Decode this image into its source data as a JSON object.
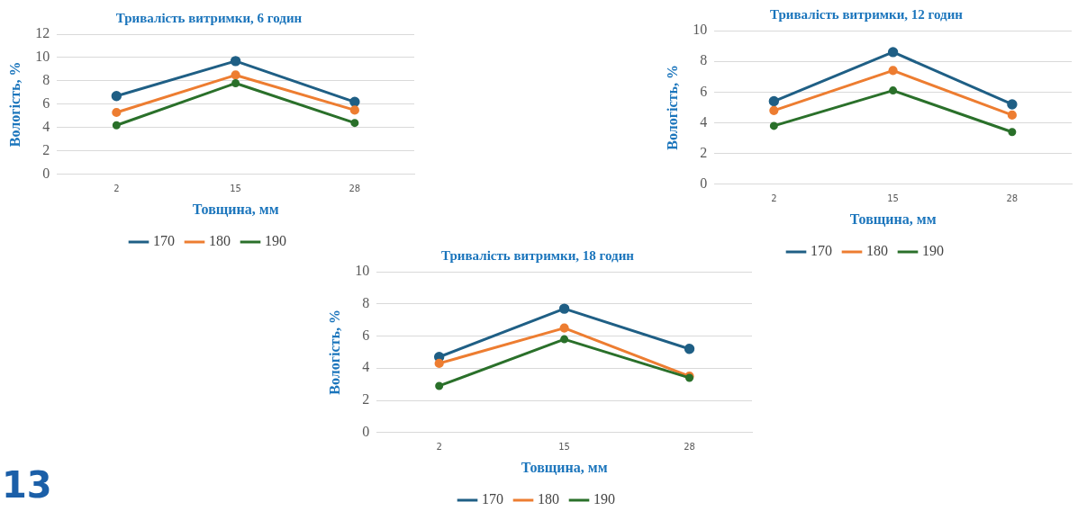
{
  "chart_data": [
    {
      "type": "line",
      "title": "Тривалість витримки, 6 годин",
      "xlabel": "Товщина, мм",
      "ylabel": "Вологість, %",
      "categories": [
        "2",
        "15",
        "28"
      ],
      "ylim": [
        0,
        12
      ],
      "yticks": [
        0,
        2,
        4,
        6,
        8,
        10,
        12
      ],
      "grid": "y",
      "legend": "bottom",
      "marker": "circle",
      "line_style": "solid",
      "series": [
        {
          "name": "170",
          "color": "#1f5f85",
          "values": [
            6.7,
            9.7,
            6.2
          ]
        },
        {
          "name": "180",
          "color": "#ed7d31",
          "values": [
            5.3,
            8.5,
            5.5
          ]
        },
        {
          "name": "190",
          "color": "#2a702a",
          "values": [
            4.2,
            7.8,
            4.4
          ]
        }
      ]
    },
    {
      "type": "line",
      "title": "Тривалість витримки, 12 годин",
      "xlabel": "Товщина, мм",
      "ylabel": "Вологість, %",
      "categories": [
        "2",
        "15",
        "28"
      ],
      "ylim": [
        0,
        10
      ],
      "yticks": [
        0,
        2,
        4,
        6,
        8,
        10
      ],
      "grid": "y",
      "legend": "bottom",
      "marker": "circle",
      "line_style": "solid",
      "series": [
        {
          "name": "170",
          "color": "#1f5f85",
          "values": [
            5.4,
            8.6,
            5.2
          ]
        },
        {
          "name": "180",
          "color": "#ed7d31",
          "values": [
            4.8,
            7.4,
            4.5
          ]
        },
        {
          "name": "190",
          "color": "#2a702a",
          "values": [
            3.8,
            6.1,
            3.4
          ]
        }
      ]
    },
    {
      "type": "line",
      "title": "Тривалість витримки, 18 годин",
      "xlabel": "Товщина, мм",
      "ylabel": "Вологість, %",
      "categories": [
        "2",
        "15",
        "28"
      ],
      "ylim": [
        0,
        10
      ],
      "yticks": [
        0,
        2,
        4,
        6,
        8,
        10
      ],
      "grid": "y",
      "legend": "bottom",
      "marker": "circle",
      "line_style": "solid",
      "annotations": [
        "13"
      ],
      "series": [
        {
          "name": "170",
          "color": "#1f5f85",
          "values": [
            4.7,
            7.7,
            5.2
          ]
        },
        {
          "name": "180",
          "color": "#ed7d31",
          "values": [
            4.3,
            6.5,
            3.5
          ]
        },
        {
          "name": "190",
          "color": "#2a702a",
          "values": [
            2.9,
            5.8,
            3.4
          ]
        }
      ]
    }
  ]
}
